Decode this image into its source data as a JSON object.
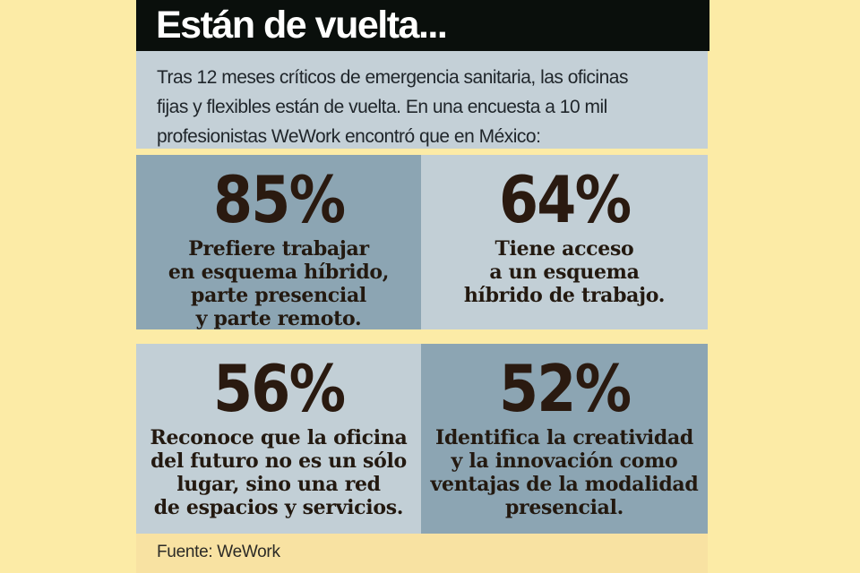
{
  "header": {
    "title": "Están de vuelta..."
  },
  "intro": {
    "lines": [
      "Tras 12 meses críticos de emergencia sanitaria, las oficinas",
      "fijas y flexibles están de vuelta. En una encuesta a 10 mil",
      "profesionistas WeWork encontró que en México:"
    ]
  },
  "stats": [
    {
      "value": "85%",
      "shade": "dark",
      "lines": [
        "Prefiere trabajar",
        "en esquema híbrido,",
        "parte presencial",
        "y parte remoto."
      ]
    },
    {
      "value": "64%",
      "shade": "light",
      "lines": [
        "Tiene acceso",
        "a un esquema",
        "híbrido de trabajo."
      ]
    },
    {
      "value": "56%",
      "shade": "light",
      "lines": [
        "Reconoce que la oficina",
        "del futuro no es un sólo",
        "lugar, sino una red",
        "de espacios y servicios."
      ]
    },
    {
      "value": "52%",
      "shade": "dark",
      "lines": [
        "Identifica la creatividad",
        "y la innovación como",
        "ventajas de la modalidad",
        "presencial."
      ]
    }
  ],
  "footer": {
    "source": "Fuente: WeWork"
  },
  "colors": {
    "page_yellow": "#fceba6",
    "footer_yellow": "#f8e2a2",
    "header_black": "#0a0f0c",
    "intro_panel": "#c4d0d7",
    "box_dark": "#8ca5b3",
    "box_light": "#c2cfd6",
    "number_brown": "#2a1a10",
    "title_white": "#ffffff"
  },
  "chart_data": {
    "type": "table",
    "title": "Están de vuelta...",
    "subtitle": "Tras 12 meses críticos de emergencia sanitaria, las oficinas fijas y flexibles están de vuelta. En una encuesta a 10 mil profesionistas WeWork encontró que en México:",
    "unit": "%",
    "sample": "10 mil profesionistas",
    "region": "México",
    "categories": [
      "Prefiere trabajar en esquema híbrido, parte presencial y parte remoto.",
      "Tiene acceso a un esquema híbrido de trabajo.",
      "Reconoce que la oficina del futuro no es un sólo lugar, sino una red de espacios y servicios.",
      "Identifica la creatividad y la innovación como ventajas de la modalidad presencial."
    ],
    "values": [
      85,
      64,
      56,
      52
    ],
    "source": "WeWork"
  }
}
